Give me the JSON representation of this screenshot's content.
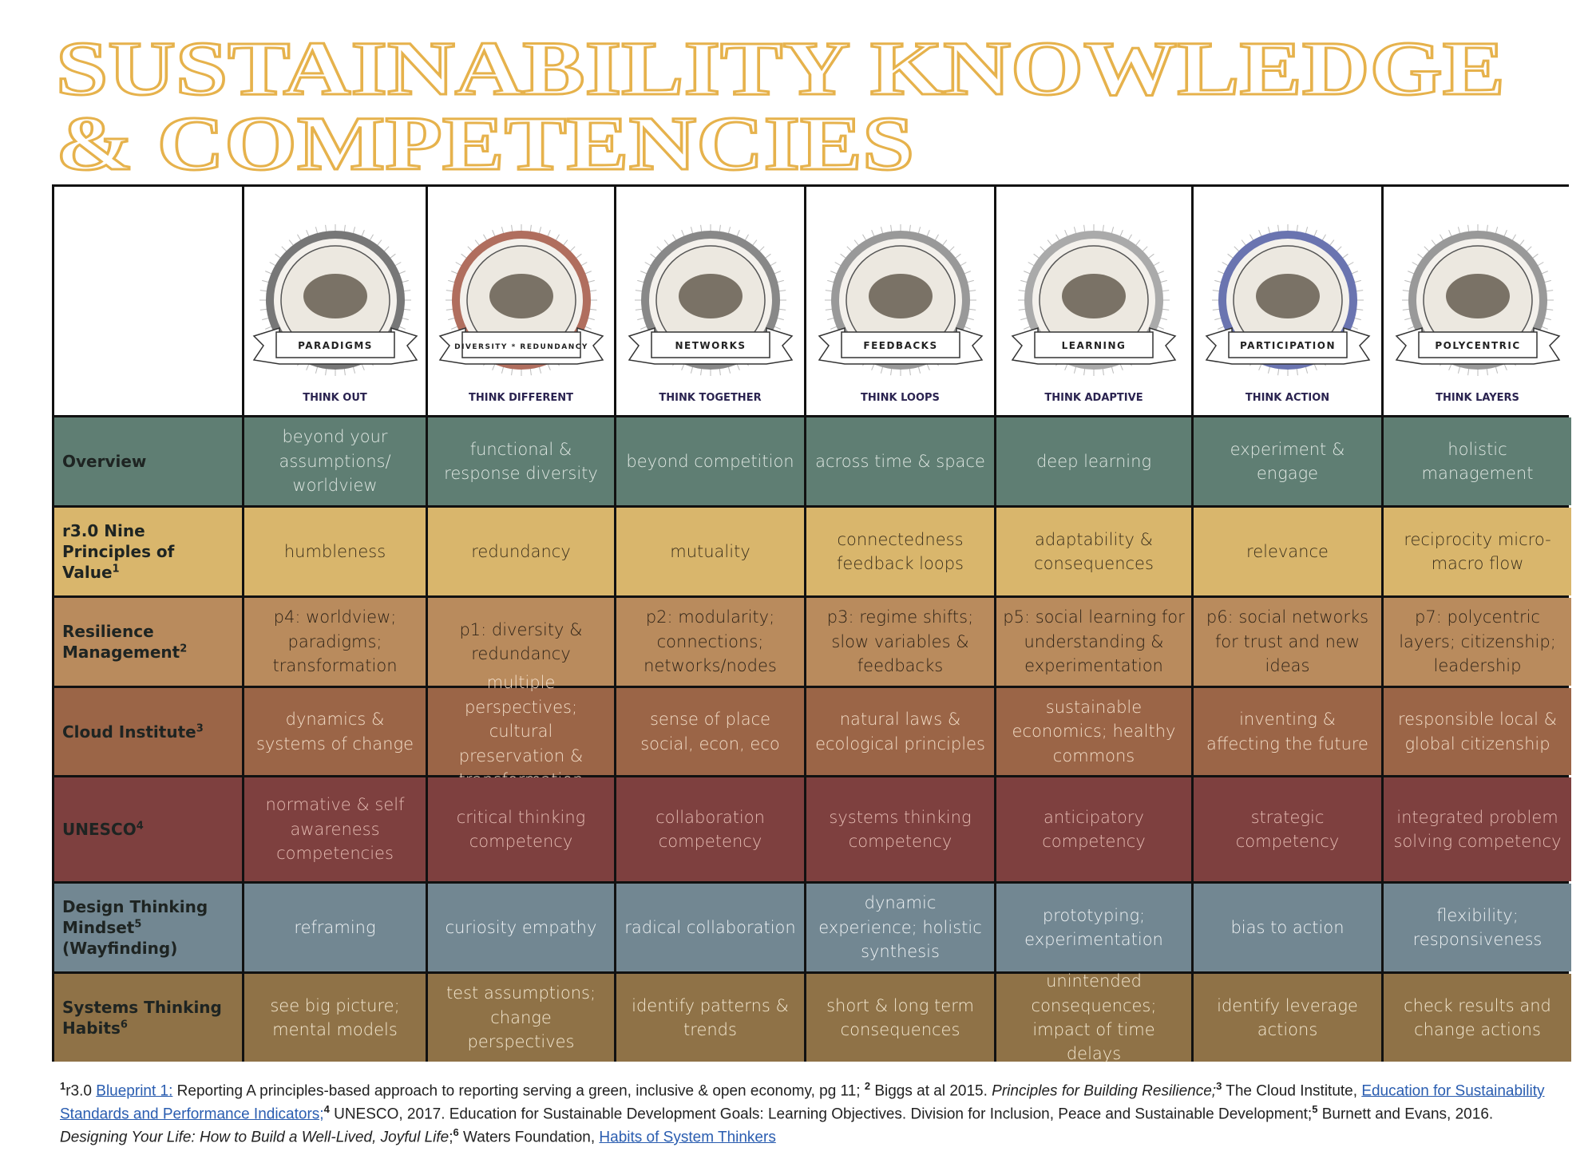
{
  "title": {
    "lines": [
      "SUSTAINABILITY KNOWLEDGE",
      "& COMPETENCIES"
    ],
    "color": "#e6b24c"
  },
  "columns": [
    {
      "emblem": "PARADIGMS",
      "label": "THINK OUT"
    },
    {
      "emblem": "DIVERSITY * REDUNDANCY",
      "label": "THINK DIFFERENT"
    },
    {
      "emblem": "NETWORKS",
      "label": "THINK TOGETHER"
    },
    {
      "emblem": "FEEDBACKS",
      "label": "THINK LOOPS"
    },
    {
      "emblem": "LEARNING",
      "label": "THINK ADAPTIVE"
    },
    {
      "emblem": "PARTICIPATION",
      "label": "THINK ACTION"
    },
    {
      "emblem": "POLYCENTRIC",
      "label": "THINK LAYERS"
    }
  ],
  "rows": [
    {
      "label": "Overview",
      "color": "#5f7e73",
      "text_color": "#dfe7e2",
      "cells": [
        "beyond your assumptions/ worldview",
        "functional & response diversity",
        "beyond competition",
        "across time & space",
        "deep learning",
        "experiment & engage",
        "holistic management"
      ]
    },
    {
      "label": "r3.0 Nine Principles of Value",
      "sup": "1",
      "color": "#d9b66c",
      "text_color": "#3b2f1b",
      "cells": [
        "humbleness",
        "redundancy",
        "mutuality",
        "connectedness feedback loops",
        "adaptability & consequences",
        "relevance",
        "reciprocity micro-macro flow"
      ]
    },
    {
      "label": "Resilience Management",
      "sup": "2",
      "color": "#b98b5d",
      "text_color": "#2e2216",
      "cells": [
        "p4: worldview; paradigms; transformation",
        "p1: diversity & redundancy",
        "p2: modularity; connections; networks/nodes",
        "p3: regime shifts; slow variables & feedbacks",
        "p5: social learning for understanding & experimentation",
        "p6: social networks for trust and new ideas",
        "p7: polycentric layers; citizenship; leadership"
      ]
    },
    {
      "label": "Cloud Institute",
      "sup": "3",
      "color": "#9b6547",
      "text_color": "#f2dcc6",
      "cells": [
        "dynamics & systems of change",
        "multiple perspectives; cultural preservation & transformation",
        "sense of place social, econ, eco",
        "natural laws & ecological principles",
        "sustainable economics; healthy commons",
        "inventing & affecting the future",
        "responsible local & global citizenship"
      ]
    },
    {
      "label": "UNESCO",
      "sup": "4",
      "color": "#7e403f",
      "text_color": "#e3b9b0",
      "cells": [
        "normative & self awareness competencies",
        "critical thinking competency",
        "collaboration competency",
        "systems thinking competency",
        "anticipatory competency",
        "strategic competency",
        "integrated problem solving competency"
      ]
    },
    {
      "label": "Design Thinking Mindset",
      "sup": "5",
      "label_after": " (Wayfinding)",
      "color": "#728792",
      "text_color": "#eef2f4",
      "cells": [
        "reframing",
        "curiosity empathy",
        "radical collaboration",
        "dynamic experience; holistic synthesis",
        "prototyping; experimentation",
        "bias to action",
        "flexibility; responsiveness"
      ]
    },
    {
      "label": "Systems Thinking Habits",
      "sup": "6",
      "color": "#8f7247",
      "text_color": "#f4e8d0",
      "cells": [
        "see big picture; mental models",
        "test assumptions; change perspectives",
        "identify patterns & trends",
        "short & long term consequences",
        "unintended consequences; impact of time delays",
        "identify leverage actions",
        "check results and change actions"
      ]
    }
  ],
  "footnotes": [
    {
      "text": "1",
      "style": "sup"
    },
    {
      "text": "r3.0 "
    },
    {
      "text": "Blueprint 1:",
      "style": "link"
    },
    {
      "text": " Reporting A principles-based approach to reporting serving a green, inclusive & open economy, pg 11; "
    },
    {
      "text": "2",
      "style": "sup"
    },
    {
      "text": " Biggs at al 2015. "
    },
    {
      "text": "Principles for Building Resilience;",
      "style": "italic"
    },
    {
      "text": "3",
      "style": "sup"
    },
    {
      "text": " The Cloud Institute, "
    },
    {
      "text": "Education for Sustainability Standards and Performance Indicators;",
      "style": "link"
    },
    {
      "text": "4",
      "style": "sup"
    },
    {
      "text": " UNESCO, 2017. Education for Sustainable Development Goals: Learning Objectives. Division for Inclusion, Peace and Sustainable Development;"
    },
    {
      "text": "5",
      "style": "sup"
    },
    {
      "text": " Burnett and Evans, 2016. "
    },
    {
      "text": "Designing Your Life: How to Build a Well-Lived, Joyful Life",
      "style": "italic"
    },
    {
      "text": ";"
    },
    {
      "text": "6",
      "style": "sup"
    },
    {
      "text": " Waters Foundation, "
    },
    {
      "text": "Habits of System Thinkers",
      "style": "link"
    }
  ]
}
